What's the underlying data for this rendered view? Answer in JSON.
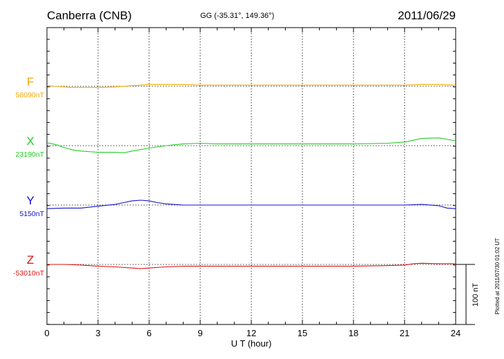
{
  "header": {
    "station": "Canberra (CNB)",
    "coords": "GG (-35.31°, 149.36°)",
    "date": "2011/06/29"
  },
  "plotted_note": "Plotted at 2011/07/30 01:02 UT",
  "scale_label": "100 nT",
  "chart_data": {
    "type": "line",
    "title": "Canberra (CNB)",
    "xlabel": "U T (hour)",
    "ylabel": "",
    "xlim": [
      0,
      24
    ],
    "xticks": [
      0,
      3,
      6,
      9,
      12,
      15,
      18,
      21,
      24
    ],
    "grid": true,
    "scale_bar_nT": 100,
    "series": [
      {
        "name": "F",
        "baseline_label": "58090nT",
        "color": "#f5a800",
        "x": [
          0,
          0.5,
          1,
          1.5,
          2,
          3,
          4,
          5,
          5.5,
          6,
          7,
          8,
          9,
          10,
          12,
          14,
          16,
          18,
          20,
          21,
          22,
          22.5,
          23,
          24
        ],
        "y": [
          1,
          0,
          -1,
          -2,
          -2,
          -2,
          -1,
          1,
          2,
          3,
          3,
          3,
          2,
          2,
          2,
          2,
          2,
          2,
          2,
          2,
          3,
          3,
          3,
          2
        ]
      },
      {
        "name": "X",
        "baseline_label": "23190nT",
        "color": "#22cc22",
        "x": [
          0,
          0.5,
          1,
          1.5,
          2,
          3,
          4,
          4.5,
          5,
          6,
          7,
          8,
          9,
          10,
          12,
          14,
          16,
          18,
          20,
          21,
          22,
          23,
          24
        ],
        "y": [
          5,
          2,
          -3,
          -7,
          -9,
          -11,
          -11,
          -12,
          -9,
          -4,
          0,
          3,
          4,
          3,
          3,
          3,
          3,
          3,
          4,
          6,
          12,
          13,
          8
        ]
      },
      {
        "name": "Y",
        "baseline_label": "5150nT",
        "color": "#1010cc",
        "x": [
          0,
          1,
          2,
          3,
          4,
          4.5,
          5,
          5.5,
          6,
          6.5,
          7,
          8,
          9,
          10,
          12,
          14,
          16,
          18,
          19,
          20,
          21,
          22,
          23,
          23.5,
          24
        ],
        "y": [
          -6,
          -5,
          -5,
          -2,
          1,
          4,
          7,
          8,
          7,
          4,
          2,
          0,
          0,
          0,
          0,
          0,
          0,
          0,
          0,
          0,
          0,
          1,
          -1,
          -5,
          -6
        ]
      },
      {
        "name": "Z",
        "baseline_label": "-53010nT",
        "color": "#dd1111",
        "x": [
          0,
          1,
          2,
          3,
          4,
          5,
          5.5,
          6,
          7,
          8,
          9,
          10,
          12,
          14,
          16,
          18,
          20,
          21,
          21.5,
          22,
          23,
          24
        ],
        "y": [
          0,
          0,
          -1,
          -3,
          -4,
          -6,
          -7,
          -6,
          -4,
          -3,
          -3,
          -3,
          -3,
          -3,
          -3,
          -3,
          -2,
          -1,
          1,
          2,
          1,
          1
        ]
      }
    ]
  }
}
